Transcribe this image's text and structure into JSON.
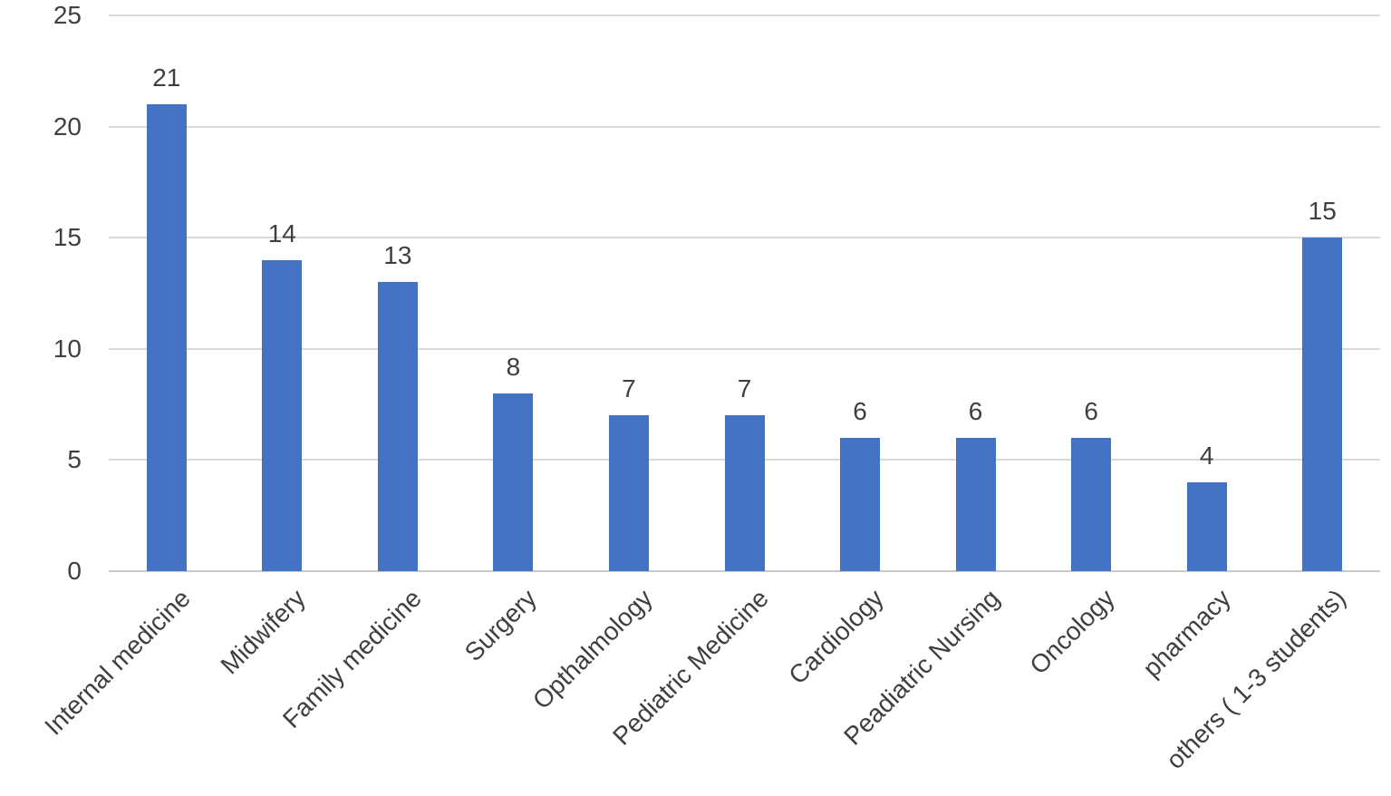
{
  "chart_data": {
    "type": "bar",
    "title": "",
    "xlabel": "",
    "ylabel": "",
    "categories": [
      "Internal  medicine",
      "Midwifery",
      "Family medicine",
      "Surgery",
      "Opthalmology",
      "Pediatric Medicine",
      "Cardiology",
      "Peadiatric Nursing",
      "Oncology",
      "pharmacy",
      "others ( 1-3 students)"
    ],
    "values": [
      21,
      14,
      13,
      8,
      7,
      7,
      6,
      6,
      6,
      4,
      15
    ],
    "data_labels": [
      21,
      14,
      13,
      8,
      7,
      7,
      6,
      6,
      6,
      4,
      15
    ],
    "ylim": [
      0,
      25
    ],
    "y_ticks": [
      0,
      5,
      10,
      15,
      20,
      25
    ],
    "grid": "horizontal",
    "legend": "none",
    "x_label_rotation_deg": 45,
    "colors": {
      "bar": "#4472C4",
      "gridline": "#D9D9D9",
      "axis_line": "#C9C9C9",
      "label_text": "#3f3f3f"
    }
  }
}
